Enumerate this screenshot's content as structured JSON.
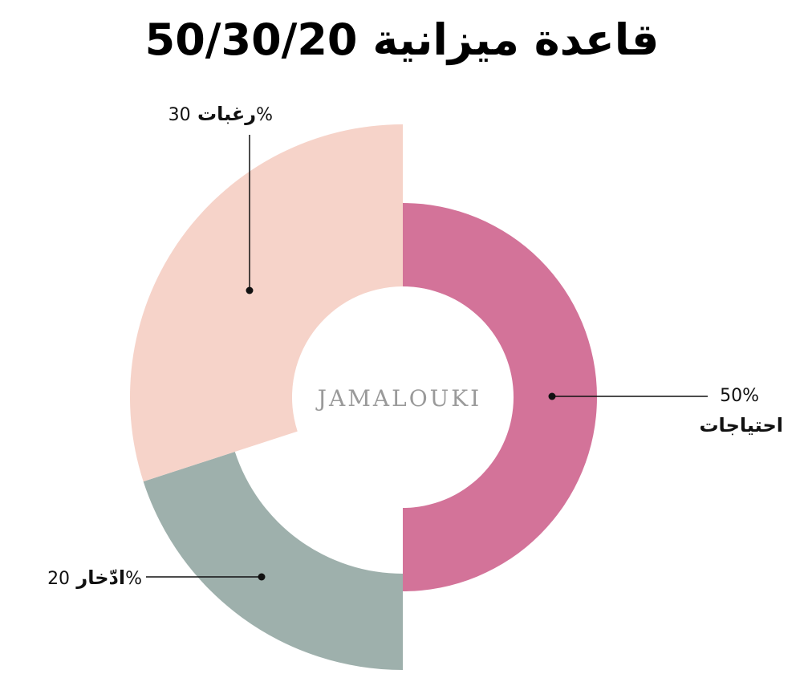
{
  "chart_data": {
    "type": "pie",
    "title": "قاعدة ميزانية 50/30/20",
    "center_label": "JAMALOUKI",
    "slices": [
      {
        "label": "احتياجات",
        "value": 50,
        "value_label": "50%",
        "color": "#d37399"
      },
      {
        "label": "رغبات",
        "value": 30,
        "value_label": "30%",
        "color": "#f6d3c9"
      },
      {
        "label": "ادّخار",
        "value": 20,
        "value_label": "20%",
        "color": "#9eb0ac"
      }
    ]
  }
}
